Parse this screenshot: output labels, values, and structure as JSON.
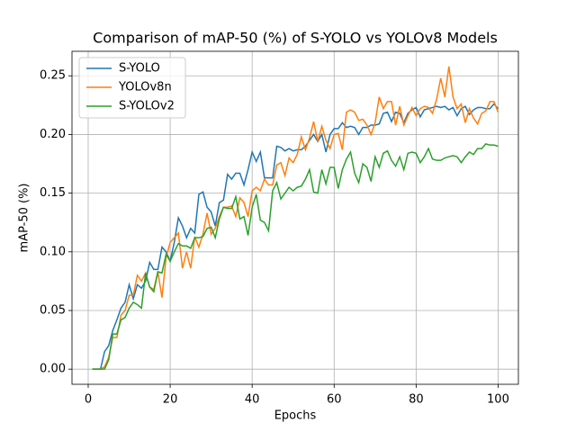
{
  "chart_data": {
    "type": "line",
    "title": "Comparison of mAP-50 (%) of S-YOLO vs YOLOv8 Models",
    "x_label": "Epochs",
    "y_label": "mAP-50 (%)",
    "x": [
      1,
      2,
      3,
      4,
      5,
      6,
      7,
      8,
      9,
      10,
      11,
      12,
      13,
      14,
      15,
      16,
      17,
      18,
      19,
      20,
      21,
      22,
      23,
      24,
      25,
      26,
      27,
      28,
      29,
      30,
      31,
      32,
      33,
      34,
      35,
      36,
      37,
      38,
      39,
      40,
      41,
      42,
      43,
      44,
      45,
      46,
      47,
      48,
      49,
      50,
      51,
      52,
      53,
      54,
      55,
      56,
      57,
      58,
      59,
      60,
      61,
      62,
      63,
      64,
      65,
      66,
      67,
      68,
      69,
      70,
      71,
      72,
      73,
      74,
      75,
      76,
      77,
      78,
      79,
      80,
      81,
      82,
      83,
      84,
      85,
      86,
      87,
      88,
      89,
      90,
      91,
      92,
      93,
      94,
      95,
      96,
      97,
      98,
      99,
      100
    ],
    "series": [
      {
        "name": "S-YOLO",
        "color": "#1f77b4",
        "values": [
          0,
          0,
          0,
          0.015,
          0.02,
          0.033,
          0.042,
          0.052,
          0.057,
          0.072,
          0.06,
          0.072,
          0.069,
          0.075,
          0.091,
          0.085,
          0.085,
          0.104,
          0.1,
          0.092,
          0.108,
          0.129,
          0.122,
          0.112,
          0.12,
          0.116,
          0.149,
          0.151,
          0.138,
          0.134,
          0.122,
          0.142,
          0.144,
          0.166,
          0.162,
          0.167,
          0.167,
          0.157,
          0.17,
          0.185,
          0.177,
          0.185,
          0.163,
          0.163,
          0.163,
          0.19,
          0.189,
          0.186,
          0.188,
          0.186,
          0.187,
          0.187,
          0.19,
          0.195,
          0.2,
          0.194,
          0.2,
          0.185,
          0.2,
          0.205,
          0.205,
          0.21,
          0.206,
          0.207,
          0.206,
          0.2,
          0.206,
          0.206,
          0.208,
          0.208,
          0.209,
          0.218,
          0.219,
          0.211,
          0.219,
          0.218,
          0.21,
          0.218,
          0.221,
          0.223,
          0.215,
          0.221,
          0.222,
          0.223,
          0.224,
          0.223,
          0.224,
          0.221,
          0.223,
          0.216,
          0.222,
          0.224,
          0.217,
          0.221,
          0.223,
          0.223,
          0.222,
          0.222,
          0.226,
          0.222
        ]
      },
      {
        "name": "YOLOv8n",
        "color": "#ff7f0e",
        "values": [
          0,
          0,
          0,
          0.002,
          0.01,
          0.027,
          0.027,
          0.046,
          0.05,
          0.063,
          0.063,
          0.08,
          0.075,
          0.082,
          0.07,
          0.068,
          0.083,
          0.061,
          0.095,
          0.108,
          0.112,
          0.116,
          0.086,
          0.1,
          0.086,
          0.113,
          0.104,
          0.115,
          0.133,
          0.115,
          0.12,
          0.13,
          0.138,
          0.138,
          0.139,
          0.13,
          0.146,
          0.142,
          0.13,
          0.152,
          0.155,
          0.152,
          0.162,
          0.157,
          0.157,
          0.174,
          0.176,
          0.165,
          0.18,
          0.176,
          0.183,
          0.198,
          0.187,
          0.197,
          0.211,
          0.194,
          0.207,
          0.195,
          0.188,
          0.2,
          0.201,
          0.187,
          0.219,
          0.221,
          0.219,
          0.212,
          0.213,
          0.208,
          0.2,
          0.21,
          0.232,
          0.222,
          0.228,
          0.228,
          0.208,
          0.224,
          0.208,
          0.216,
          0.223,
          0.216,
          0.222,
          0.224,
          0.223,
          0.218,
          0.23,
          0.248,
          0.232,
          0.258,
          0.232,
          0.222,
          0.226,
          0.21,
          0.222,
          0.214,
          0.209,
          0.218,
          0.22,
          0.228,
          0.228,
          0.219
        ]
      },
      {
        "name": "S-YOLOv2",
        "color": "#2ca02c",
        "values": [
          0,
          0,
          0,
          0,
          0.008,
          0.03,
          0.03,
          0.042,
          0.044,
          0.052,
          0.057,
          0.055,
          0.052,
          0.082,
          0.07,
          0.066,
          0.083,
          0.082,
          0.098,
          0.092,
          0.1,
          0.107,
          0.105,
          0.105,
          0.103,
          0.112,
          0.112,
          0.113,
          0.12,
          0.121,
          0.112,
          0.128,
          0.138,
          0.137,
          0.137,
          0.147,
          0.128,
          0.13,
          0.114,
          0.138,
          0.149,
          0.127,
          0.125,
          0.118,
          0.152,
          0.159,
          0.145,
          0.15,
          0.155,
          0.152,
          0.155,
          0.156,
          0.162,
          0.17,
          0.151,
          0.15,
          0.17,
          0.158,
          0.172,
          0.172,
          0.154,
          0.17,
          0.179,
          0.185,
          0.167,
          0.159,
          0.175,
          0.172,
          0.16,
          0.181,
          0.172,
          0.184,
          0.186,
          0.178,
          0.173,
          0.181,
          0.17,
          0.184,
          0.185,
          0.184,
          0.176,
          0.181,
          0.188,
          0.179,
          0.178,
          0.178,
          0.18,
          0.181,
          0.182,
          0.181,
          0.176,
          0.181,
          0.185,
          0.183,
          0.188,
          0.188,
          0.192,
          0.191,
          0.191,
          0.19
        ]
      }
    ],
    "xlim": [
      -3.95,
      104.95
    ],
    "ylim": [
      -0.0129,
      0.2709
    ],
    "xticks": [
      0,
      20,
      40,
      60,
      80,
      100
    ],
    "yticks": [
      {
        "value": 0,
        "label": "0.00"
      },
      {
        "value": 0.05,
        "label": "0.05"
      },
      {
        "value": 0.1,
        "label": "0.10"
      },
      {
        "value": 0.15,
        "label": "0.15"
      },
      {
        "value": 0.2,
        "label": "0.20"
      },
      {
        "value": 0.25,
        "label": "0.25"
      }
    ],
    "grid": true,
    "legend": "upper left"
  }
}
